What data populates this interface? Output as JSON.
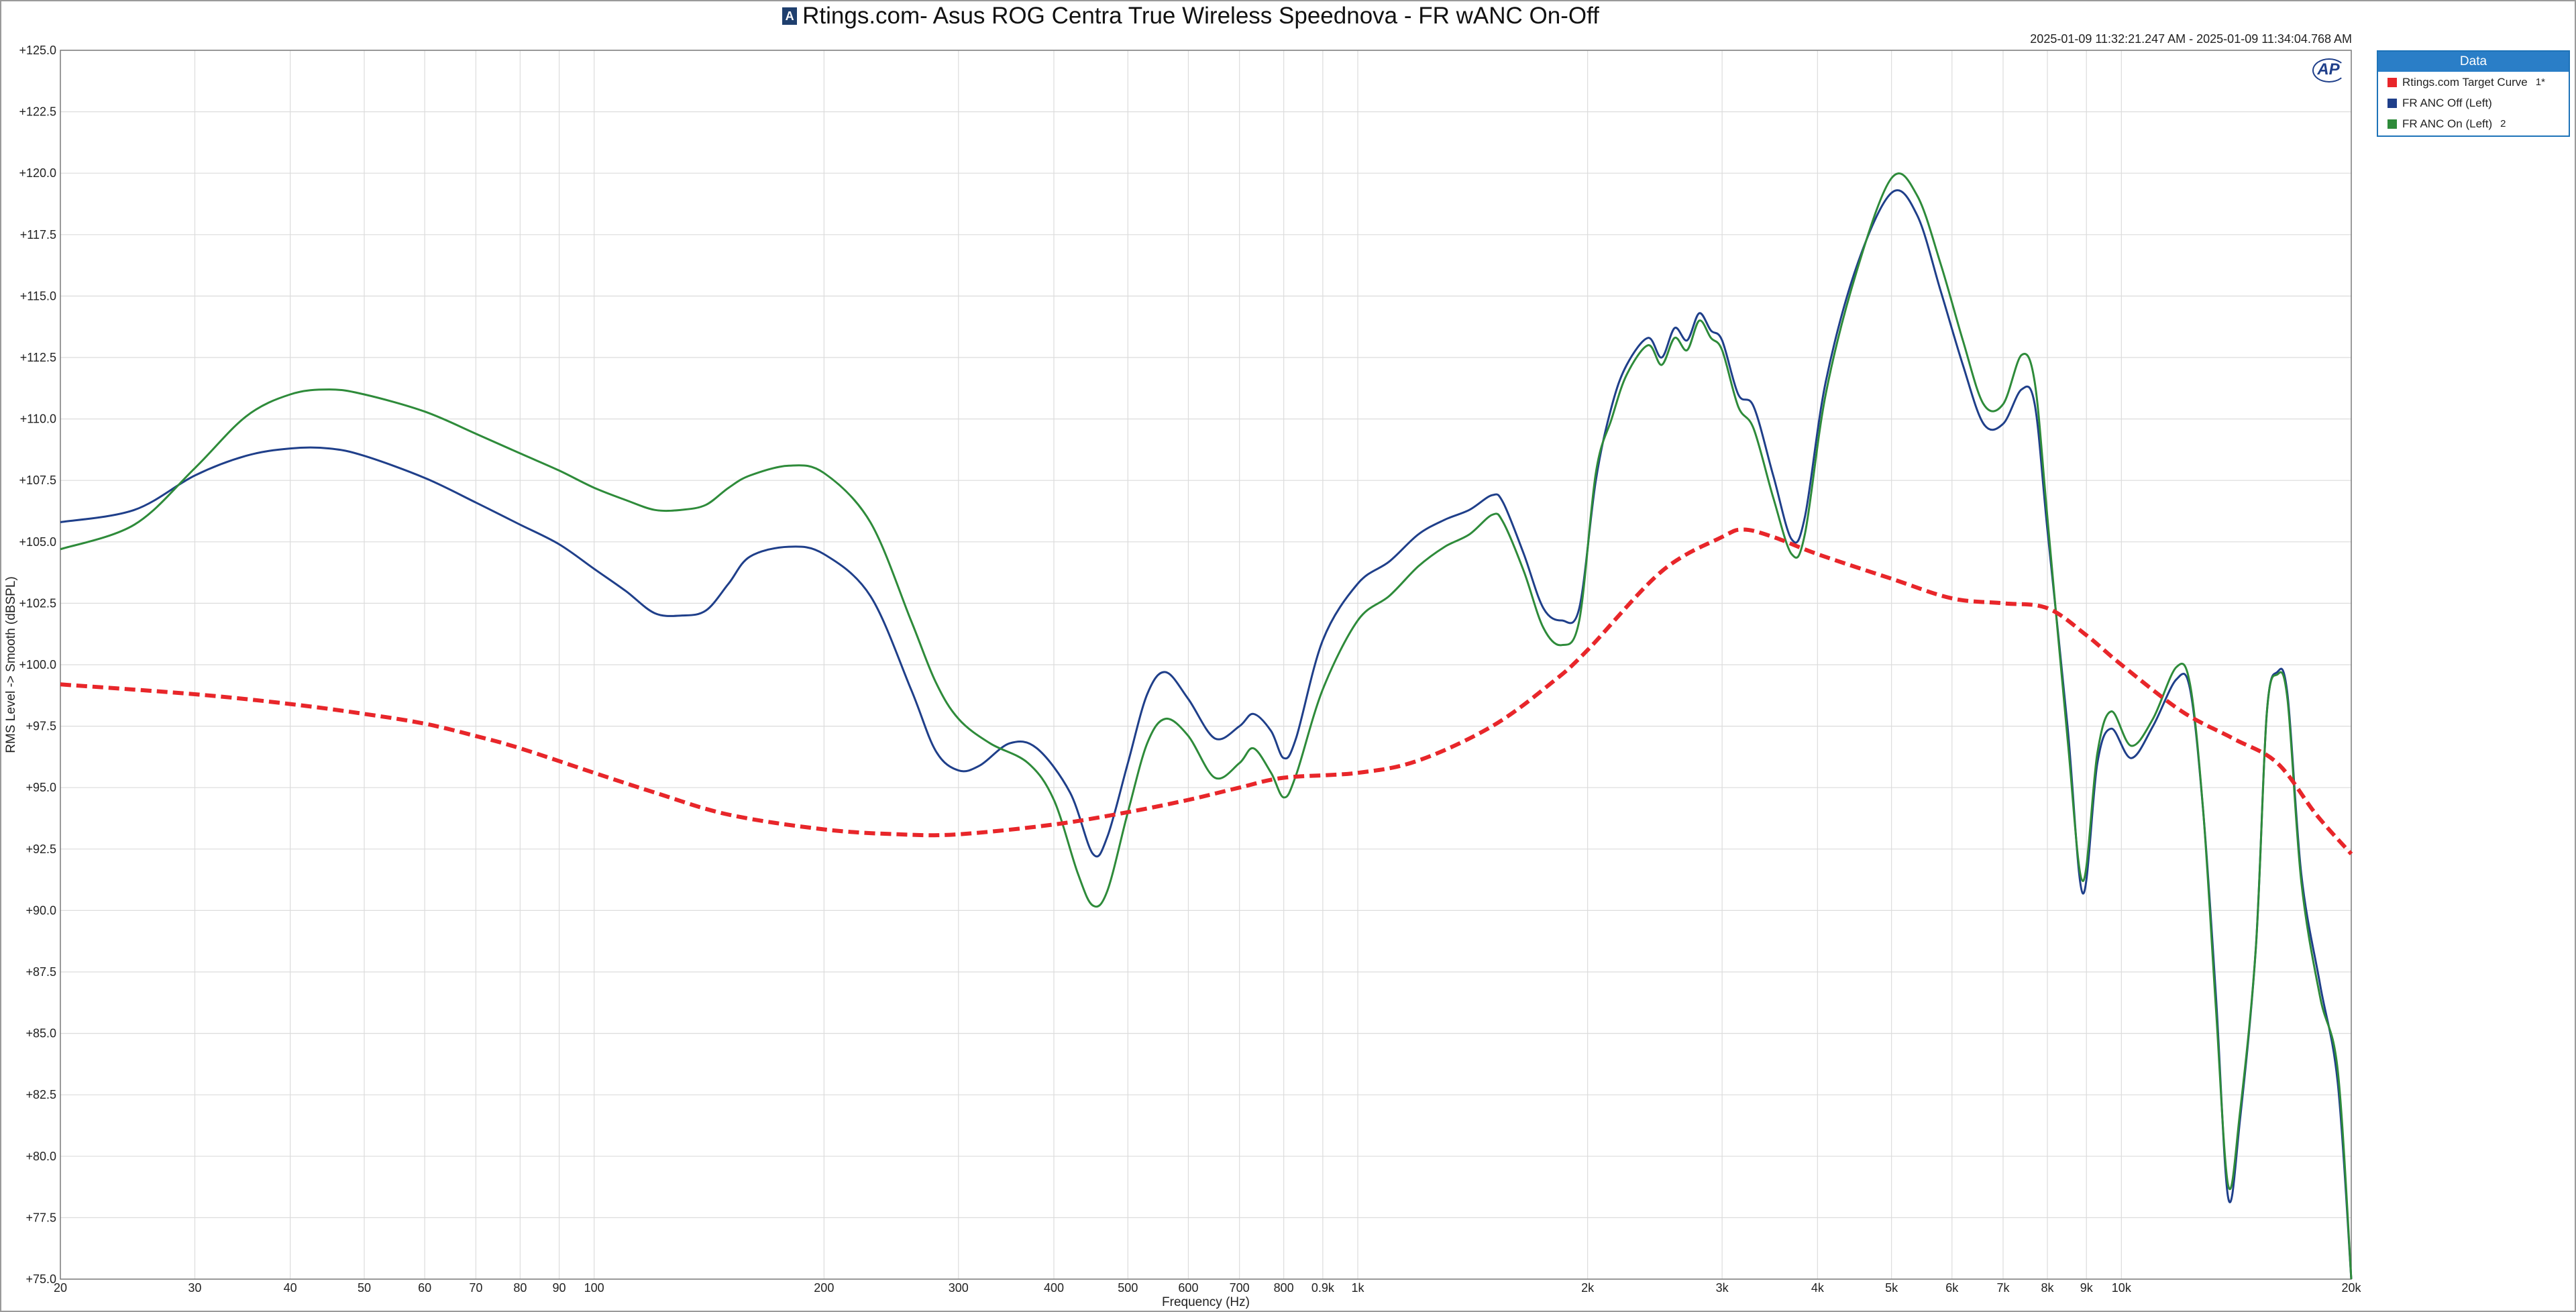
{
  "window": {
    "title": "Rtings.com-  Asus ROG Centra True Wireless Speednova - FR wANC On-Off",
    "timestamp": "2025-01-09 11:32:21.247 AM - 2025-01-09 11:34:04.768 AM",
    "logo_text": "AP",
    "title_icon_text": "A"
  },
  "legend": {
    "header": "Data",
    "items": [
      {
        "label": "Rtings.com Target Curve",
        "color": "#e8262a",
        "tag": "1*"
      },
      {
        "label": "FR ANC Off (Left)",
        "color": "#1f3f8a",
        "tag": ""
      },
      {
        "label": "FR ANC On (Left)",
        "color": "#2e8b3a",
        "tag": "2"
      }
    ]
  },
  "chart_data": {
    "type": "line",
    "title": "Rtings.com-  Asus ROG Centra True Wireless Speednova - FR wANC On-Off",
    "xlabel": "Frequency (Hz)",
    "ylabel": "RMS Level -> Smooth (dBSPL)",
    "xscale": "log",
    "xlim": [
      20,
      20000
    ],
    "ylim": [
      75,
      125
    ],
    "grid": true,
    "legend_placement": "top-right outside",
    "x_ticks": [
      {
        "value": 20,
        "label": "20"
      },
      {
        "value": 30,
        "label": "30"
      },
      {
        "value": 40,
        "label": "40"
      },
      {
        "value": 50,
        "label": "50"
      },
      {
        "value": 60,
        "label": "60"
      },
      {
        "value": 70,
        "label": "70"
      },
      {
        "value": 80,
        "label": "80"
      },
      {
        "value": 90,
        "label": "90"
      },
      {
        "value": 100,
        "label": "100"
      },
      {
        "value": 200,
        "label": "200"
      },
      {
        "value": 300,
        "label": "300"
      },
      {
        "value": 400,
        "label": "400"
      },
      {
        "value": 500,
        "label": "500"
      },
      {
        "value": 600,
        "label": "600"
      },
      {
        "value": 700,
        "label": "700"
      },
      {
        "value": 800,
        "label": "800"
      },
      {
        "value": 900,
        "label": "0.9k"
      },
      {
        "value": 1000,
        "label": "1k"
      },
      {
        "value": 2000,
        "label": "2k"
      },
      {
        "value": 3000,
        "label": "3k"
      },
      {
        "value": 4000,
        "label": "4k"
      },
      {
        "value": 5000,
        "label": "5k"
      },
      {
        "value": 6000,
        "label": "6k"
      },
      {
        "value": 7000,
        "label": "7k"
      },
      {
        "value": 8000,
        "label": "8k"
      },
      {
        "value": 9000,
        "label": "9k"
      },
      {
        "value": 10000,
        "label": "10k"
      },
      {
        "value": 20000,
        "label": "20k"
      }
    ],
    "y_ticks": [
      {
        "value": 125,
        "label": "+125.0"
      },
      {
        "value": 122.5,
        "label": "+122.5"
      },
      {
        "value": 120,
        "label": "+120.0"
      },
      {
        "value": 117.5,
        "label": "+117.5"
      },
      {
        "value": 115,
        "label": "+115.0"
      },
      {
        "value": 112.5,
        "label": "+112.5"
      },
      {
        "value": 110,
        "label": "+110.0"
      },
      {
        "value": 107.5,
        "label": "+107.5"
      },
      {
        "value": 105,
        "label": "+105.0"
      },
      {
        "value": 102.5,
        "label": "+102.5"
      },
      {
        "value": 100,
        "label": "+100.0"
      },
      {
        "value": 97.5,
        "label": "+97.5"
      },
      {
        "value": 95,
        "label": "+95.0"
      },
      {
        "value": 92.5,
        "label": "+92.5"
      },
      {
        "value": 90,
        "label": "+90.0"
      },
      {
        "value": 87.5,
        "label": "+87.5"
      },
      {
        "value": 85,
        "label": "+85.0"
      },
      {
        "value": 82.5,
        "label": "+82.5"
      },
      {
        "value": 80,
        "label": "+80.0"
      },
      {
        "value": 77.5,
        "label": "+77.5"
      },
      {
        "value": 75,
        "label": "+75.0"
      }
    ],
    "series": [
      {
        "name": "Rtings.com Target Curve",
        "color": "#e8262a",
        "dashed": true,
        "points": [
          [
            20,
            99.2
          ],
          [
            30,
            98.8
          ],
          [
            40,
            98.4
          ],
          [
            50,
            98.0
          ],
          [
            60,
            97.6
          ],
          [
            70,
            97.1
          ],
          [
            80,
            96.6
          ],
          [
            100,
            95.6
          ],
          [
            120,
            94.8
          ],
          [
            150,
            93.9
          ],
          [
            200,
            93.3
          ],
          [
            250,
            93.1
          ],
          [
            300,
            93.1
          ],
          [
            400,
            93.5
          ],
          [
            500,
            94.0
          ],
          [
            600,
            94.5
          ],
          [
            700,
            95.0
          ],
          [
            800,
            95.4
          ],
          [
            1000,
            95.6
          ],
          [
            1200,
            96.1
          ],
          [
            1500,
            97.5
          ],
          [
            1800,
            99.3
          ],
          [
            2000,
            100.6
          ],
          [
            2500,
            103.8
          ],
          [
            3000,
            105.2
          ],
          [
            3200,
            105.5
          ],
          [
            3500,
            105.2
          ],
          [
            4000,
            104.5
          ],
          [
            5000,
            103.5
          ],
          [
            6000,
            102.7
          ],
          [
            7000,
            102.5
          ],
          [
            8000,
            102.3
          ],
          [
            9000,
            101.2
          ],
          [
            10000,
            100.0
          ],
          [
            12000,
            98.1
          ],
          [
            14000,
            97.0
          ],
          [
            16000,
            96.0
          ],
          [
            18000,
            93.9
          ],
          [
            20000,
            92.3
          ]
        ]
      },
      {
        "name": "FR ANC Off (Left)",
        "color": "#1f3f8a",
        "dashed": false,
        "points": [
          [
            20,
            105.8
          ],
          [
            25,
            106.3
          ],
          [
            30,
            107.7
          ],
          [
            35,
            108.5
          ],
          [
            40,
            108.8
          ],
          [
            45,
            108.8
          ],
          [
            50,
            108.5
          ],
          [
            60,
            107.6
          ],
          [
            70,
            106.6
          ],
          [
            80,
            105.7
          ],
          [
            90,
            104.9
          ],
          [
            100,
            103.9
          ],
          [
            110,
            103.0
          ],
          [
            120,
            102.1
          ],
          [
            130,
            102.0
          ],
          [
            140,
            102.2
          ],
          [
            150,
            103.3
          ],
          [
            160,
            104.4
          ],
          [
            180,
            104.8
          ],
          [
            200,
            104.5
          ],
          [
            230,
            102.8
          ],
          [
            260,
            99.0
          ],
          [
            280,
            96.5
          ],
          [
            300,
            95.7
          ],
          [
            320,
            95.9
          ],
          [
            350,
            96.8
          ],
          [
            380,
            96.6
          ],
          [
            420,
            94.8
          ],
          [
            450,
            92.3
          ],
          [
            470,
            93.0
          ],
          [
            500,
            96.0
          ],
          [
            530,
            98.8
          ],
          [
            560,
            99.7
          ],
          [
            600,
            98.6
          ],
          [
            650,
            97.0
          ],
          [
            700,
            97.5
          ],
          [
            730,
            98.0
          ],
          [
            770,
            97.3
          ],
          [
            800,
            96.2
          ],
          [
            830,
            97.0
          ],
          [
            900,
            101.0
          ],
          [
            1000,
            103.3
          ],
          [
            1100,
            104.2
          ],
          [
            1200,
            105.3
          ],
          [
            1300,
            105.9
          ],
          [
            1400,
            106.3
          ],
          [
            1500,
            106.9
          ],
          [
            1550,
            106.6
          ],
          [
            1650,
            104.5
          ],
          [
            1750,
            102.3
          ],
          [
            1850,
            101.8
          ],
          [
            1950,
            102.3
          ],
          [
            2050,
            107.5
          ],
          [
            2150,
            110.5
          ],
          [
            2250,
            112.2
          ],
          [
            2400,
            113.3
          ],
          [
            2500,
            112.5
          ],
          [
            2600,
            113.7
          ],
          [
            2700,
            113.2
          ],
          [
            2800,
            114.3
          ],
          [
            2900,
            113.6
          ],
          [
            3000,
            113.2
          ],
          [
            3150,
            111.0
          ],
          [
            3300,
            110.5
          ],
          [
            3500,
            107.7
          ],
          [
            3700,
            105.1
          ],
          [
            3850,
            106.0
          ],
          [
            4100,
            111.5
          ],
          [
            4500,
            116.2
          ],
          [
            5000,
            119.2
          ],
          [
            5400,
            118.3
          ],
          [
            5800,
            115.2
          ],
          [
            6200,
            112.2
          ],
          [
            6600,
            109.8
          ],
          [
            7000,
            109.8
          ],
          [
            7400,
            111.2
          ],
          [
            7700,
            110.6
          ],
          [
            8000,
            105.5
          ],
          [
            8500,
            97.5
          ],
          [
            8900,
            90.7
          ],
          [
            9300,
            96.0
          ],
          [
            9700,
            97.4
          ],
          [
            10300,
            96.2
          ],
          [
            11000,
            97.5
          ],
          [
            11800,
            99.4
          ],
          [
            12300,
            99.0
          ],
          [
            12800,
            94.0
          ],
          [
            13300,
            86.5
          ],
          [
            13800,
            78.3
          ],
          [
            14300,
            81.5
          ],
          [
            15000,
            88.5
          ],
          [
            15500,
            98.0
          ],
          [
            16000,
            99.7
          ],
          [
            16500,
            98.8
          ],
          [
            17200,
            91.5
          ],
          [
            18200,
            87.0
          ],
          [
            19200,
            83.0
          ],
          [
            20000,
            75.0
          ]
        ]
      },
      {
        "name": "FR ANC On (Left)",
        "color": "#2e8b3a",
        "dashed": false,
        "points": [
          [
            20,
            104.7
          ],
          [
            25,
            105.7
          ],
          [
            30,
            108.0
          ],
          [
            35,
            110.1
          ],
          [
            40,
            111.0
          ],
          [
            45,
            111.2
          ],
          [
            50,
            111.0
          ],
          [
            60,
            110.3
          ],
          [
            70,
            109.4
          ],
          [
            80,
            108.6
          ],
          [
            90,
            107.9
          ],
          [
            100,
            107.2
          ],
          [
            110,
            106.7
          ],
          [
            120,
            106.3
          ],
          [
            130,
            106.3
          ],
          [
            140,
            106.5
          ],
          [
            150,
            107.2
          ],
          [
            160,
            107.7
          ],
          [
            180,
            108.1
          ],
          [
            200,
            107.8
          ],
          [
            230,
            105.8
          ],
          [
            260,
            101.8
          ],
          [
            280,
            99.3
          ],
          [
            300,
            97.8
          ],
          [
            330,
            96.8
          ],
          [
            370,
            96.0
          ],
          [
            400,
            94.5
          ],
          [
            430,
            91.5
          ],
          [
            450,
            90.2
          ],
          [
            470,
            90.8
          ],
          [
            500,
            94.0
          ],
          [
            530,
            96.8
          ],
          [
            560,
            97.8
          ],
          [
            600,
            97.1
          ],
          [
            650,
            95.4
          ],
          [
            700,
            96.0
          ],
          [
            730,
            96.6
          ],
          [
            770,
            95.6
          ],
          [
            800,
            94.6
          ],
          [
            830,
            95.5
          ],
          [
            900,
            99.0
          ],
          [
            1000,
            101.8
          ],
          [
            1100,
            102.8
          ],
          [
            1200,
            104.0
          ],
          [
            1300,
            104.8
          ],
          [
            1400,
            105.3
          ],
          [
            1500,
            106.1
          ],
          [
            1550,
            105.8
          ],
          [
            1650,
            103.8
          ],
          [
            1750,
            101.5
          ],
          [
            1850,
            100.8
          ],
          [
            1950,
            101.8
          ],
          [
            2050,
            107.8
          ],
          [
            2150,
            110.0
          ],
          [
            2250,
            111.8
          ],
          [
            2400,
            113.0
          ],
          [
            2500,
            112.2
          ],
          [
            2600,
            113.3
          ],
          [
            2700,
            112.8
          ],
          [
            2800,
            114.0
          ],
          [
            2900,
            113.3
          ],
          [
            3000,
            112.8
          ],
          [
            3150,
            110.5
          ],
          [
            3300,
            109.6
          ],
          [
            3500,
            106.8
          ],
          [
            3700,
            104.5
          ],
          [
            3850,
            105.3
          ],
          [
            4100,
            111.0
          ],
          [
            4500,
            116.0
          ],
          [
            5000,
            119.8
          ],
          [
            5400,
            119.1
          ],
          [
            5800,
            116.3
          ],
          [
            6200,
            113.2
          ],
          [
            6600,
            110.6
          ],
          [
            7000,
            110.6
          ],
          [
            7400,
            112.6
          ],
          [
            7700,
            111.5
          ],
          [
            8000,
            106.0
          ],
          [
            8500,
            97.0
          ],
          [
            8900,
            91.2
          ],
          [
            9300,
            96.4
          ],
          [
            9700,
            98.1
          ],
          [
            10300,
            96.7
          ],
          [
            11000,
            97.8
          ],
          [
            11800,
            99.9
          ],
          [
            12300,
            99.2
          ],
          [
            12800,
            94.0
          ],
          [
            13300,
            86.0
          ],
          [
            13800,
            78.8
          ],
          [
            14300,
            81.8
          ],
          [
            15000,
            88.5
          ],
          [
            15500,
            98.0
          ],
          [
            16000,
            99.6
          ],
          [
            16500,
            98.6
          ],
          [
            17200,
            91.2
          ],
          [
            18200,
            86.5
          ],
          [
            19200,
            83.5
          ],
          [
            20000,
            75.0
          ]
        ]
      }
    ]
  }
}
